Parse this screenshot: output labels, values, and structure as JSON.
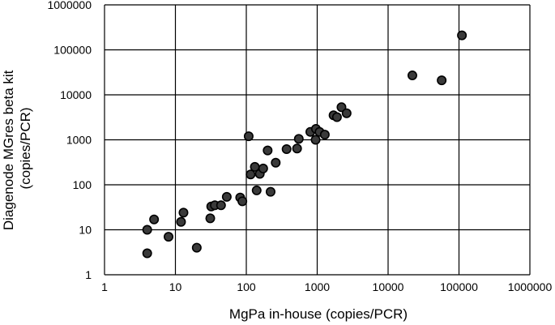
{
  "chart_data": {
    "type": "scatter",
    "title": "",
    "xlabel": "MgPa in-house (copies/PCR)",
    "ylabel_lines": [
      "Diagenode MGres beta kit",
      "(copies/PCR)"
    ],
    "x_scale": "log",
    "y_scale": "log",
    "xlim": [
      1,
      1000000
    ],
    "ylim": [
      1,
      1000000
    ],
    "x_ticks": [
      "1",
      "10",
      "100",
      "1000",
      "10000",
      "100000",
      "1000000"
    ],
    "y_ticks": [
      "1",
      "10",
      "100",
      "1000",
      "10000",
      "100000",
      "1000000"
    ],
    "grid": true,
    "marker_color": "#3a3a3a",
    "marker_edge_color": "#000000",
    "series": [
      {
        "points": [
          {
            "x": 4,
            "y": 3
          },
          {
            "x": 4,
            "y": 10
          },
          {
            "x": 5,
            "y": 17
          },
          {
            "x": 8,
            "y": 7
          },
          {
            "x": 12,
            "y": 15
          },
          {
            "x": 13,
            "y": 24
          },
          {
            "x": 20,
            "y": 4
          },
          {
            "x": 31,
            "y": 18
          },
          {
            "x": 32,
            "y": 33
          },
          {
            "x": 36,
            "y": 35
          },
          {
            "x": 44,
            "y": 35
          },
          {
            "x": 53,
            "y": 54
          },
          {
            "x": 82,
            "y": 52
          },
          {
            "x": 88,
            "y": 43
          },
          {
            "x": 108,
            "y": 1200
          },
          {
            "x": 115,
            "y": 170
          },
          {
            "x": 132,
            "y": 250
          },
          {
            "x": 140,
            "y": 75
          },
          {
            "x": 155,
            "y": 175
          },
          {
            "x": 173,
            "y": 230
          },
          {
            "x": 200,
            "y": 580
          },
          {
            "x": 220,
            "y": 70
          },
          {
            "x": 260,
            "y": 310
          },
          {
            "x": 370,
            "y": 620
          },
          {
            "x": 520,
            "y": 640
          },
          {
            "x": 550,
            "y": 1050
          },
          {
            "x": 800,
            "y": 1500
          },
          {
            "x": 950,
            "y": 1000
          },
          {
            "x": 960,
            "y": 1750
          },
          {
            "x": 1080,
            "y": 1500
          },
          {
            "x": 1280,
            "y": 1300
          },
          {
            "x": 1700,
            "y": 3500
          },
          {
            "x": 1900,
            "y": 3200
          },
          {
            "x": 2200,
            "y": 5300
          },
          {
            "x": 2600,
            "y": 3900
          },
          {
            "x": 22000,
            "y": 27000
          },
          {
            "x": 57000,
            "y": 21000
          },
          {
            "x": 110000,
            "y": 210000
          }
        ]
      }
    ]
  }
}
